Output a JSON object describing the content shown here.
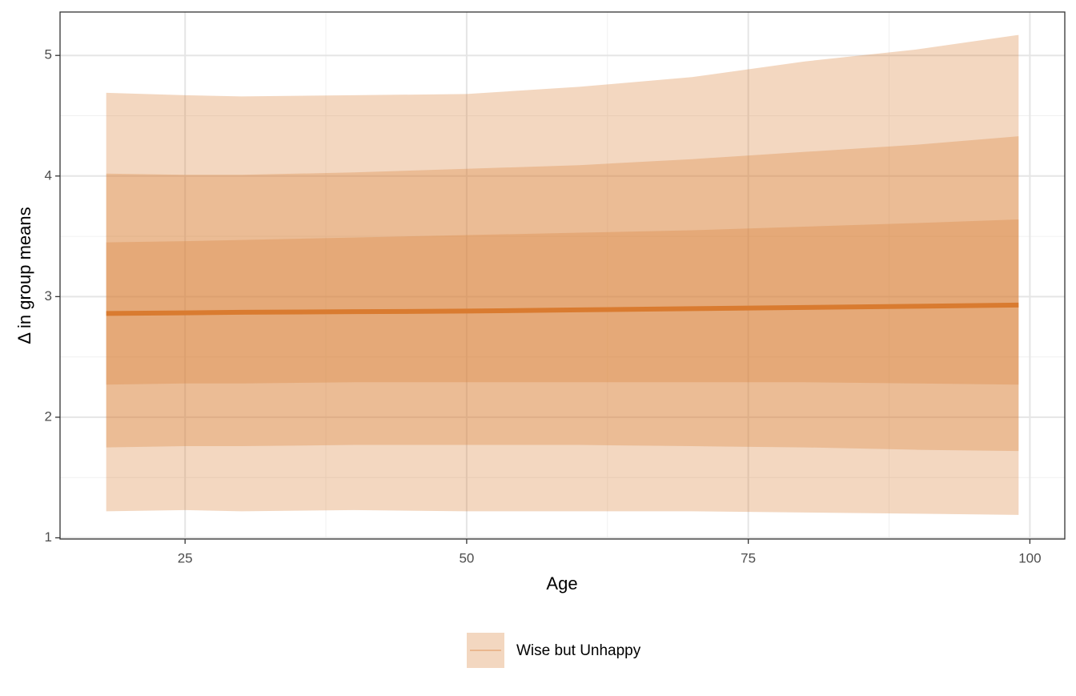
{
  "chart_data": {
    "type": "ribbon-line",
    "x_label": "Age",
    "y_label": "Δ in group means",
    "x": [
      18,
      25,
      30,
      40,
      50,
      60,
      70,
      80,
      90,
      99
    ],
    "series": [
      {
        "name": "Wise but Unhappy",
        "color": "#d97b30",
        "band_color": "#d9823c",
        "values": [
          2.86,
          2.865,
          2.87,
          2.875,
          2.88,
          2.89,
          2.9,
          2.91,
          2.92,
          2.93
        ],
        "bands": [
          {
            "lower": [
              1.22,
              1.23,
              1.22,
              1.23,
              1.22,
              1.22,
              1.22,
              1.21,
              1.2,
              1.19
            ],
            "upper": [
              4.69,
              4.67,
              4.66,
              4.67,
              4.68,
              4.74,
              4.82,
              4.95,
              5.05,
              5.17
            ]
          },
          {
            "lower": [
              1.75,
              1.76,
              1.76,
              1.77,
              1.77,
              1.77,
              1.76,
              1.75,
              1.73,
              1.72
            ],
            "upper": [
              4.02,
              4.01,
              4.01,
              4.03,
              4.06,
              4.09,
              4.14,
              4.2,
              4.26,
              4.33
            ]
          },
          {
            "lower": [
              2.27,
              2.28,
              2.28,
              2.29,
              2.29,
              2.29,
              2.29,
              2.29,
              2.28,
              2.27
            ],
            "upper": [
              3.45,
              3.46,
              3.47,
              3.49,
              3.51,
              3.53,
              3.55,
              3.58,
              3.61,
              3.64
            ]
          }
        ]
      }
    ],
    "xlim": [
      13.9,
      103.1
    ],
    "ylim": [
      0.99,
      5.36
    ],
    "xticks": [
      25,
      50,
      75,
      100
    ],
    "yticks": [
      1,
      2,
      3,
      4,
      5
    ],
    "minor_xticks": [
      37.5,
      62.5,
      87.5
    ],
    "minor_yticks": [
      1.5,
      2.5,
      3.5,
      4.5
    ],
    "grid": true,
    "legend": "bottom"
  }
}
